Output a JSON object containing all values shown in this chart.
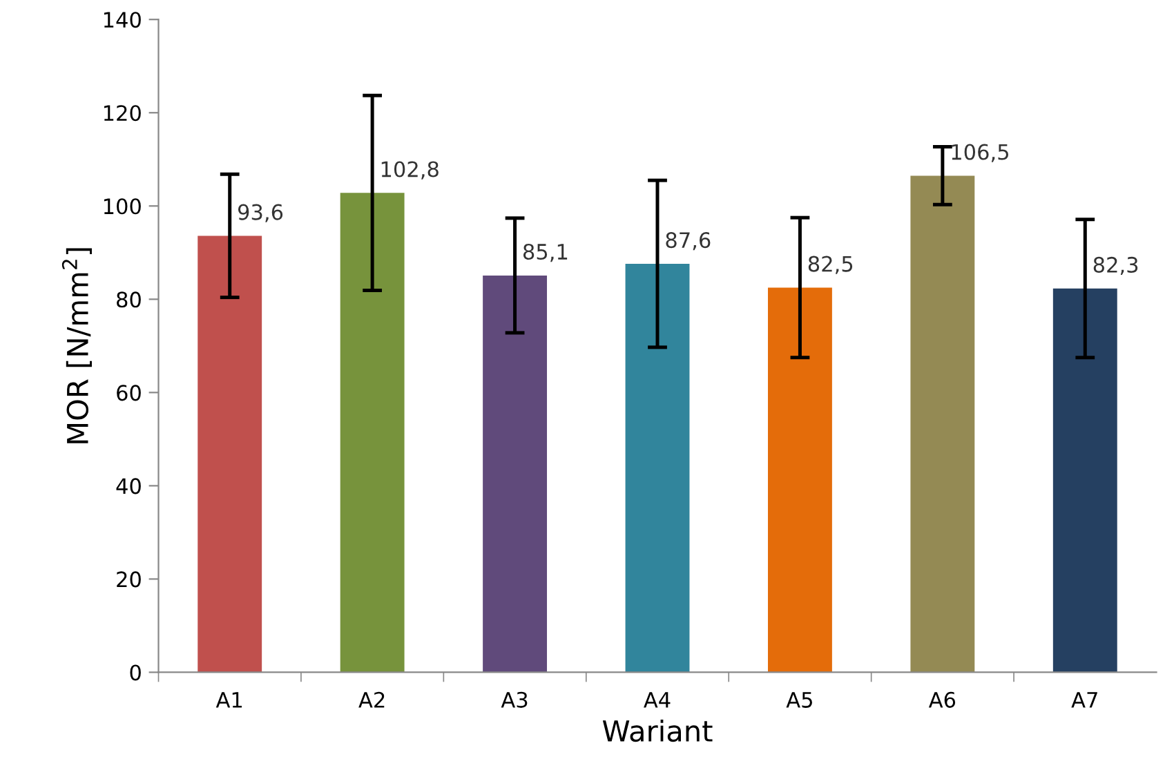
{
  "chart_data": {
    "type": "bar",
    "xlabel": "Wariant",
    "ylabel": "MOR [N/mm$^{2}$]",
    "categories": [
      "A1",
      "A2",
      "A3",
      "A4",
      "A5",
      "A6",
      "A7"
    ],
    "values": [
      93.6,
      102.8,
      85.1,
      87.6,
      82.5,
      106.5,
      82.3
    ],
    "colors": [
      "#c0504d",
      "#77933c",
      "#604a7b",
      "#31859c",
      "#e46c0a",
      "#948a54",
      "#254061"
    ],
    "errors": [
      13.2,
      20.9,
      12.3,
      17.9,
      15.0,
      6.2,
      14.8
    ],
    "value_labels": [
      "93,6",
      "102,8",
      "85,1",
      "87,6",
      "82,5",
      "106,5",
      "82,3"
    ],
    "ylim": [
      0,
      140
    ],
    "yticks": [
      0,
      20,
      40,
      60,
      80,
      100,
      120,
      140
    ],
    "grid": false,
    "legend": false
  }
}
